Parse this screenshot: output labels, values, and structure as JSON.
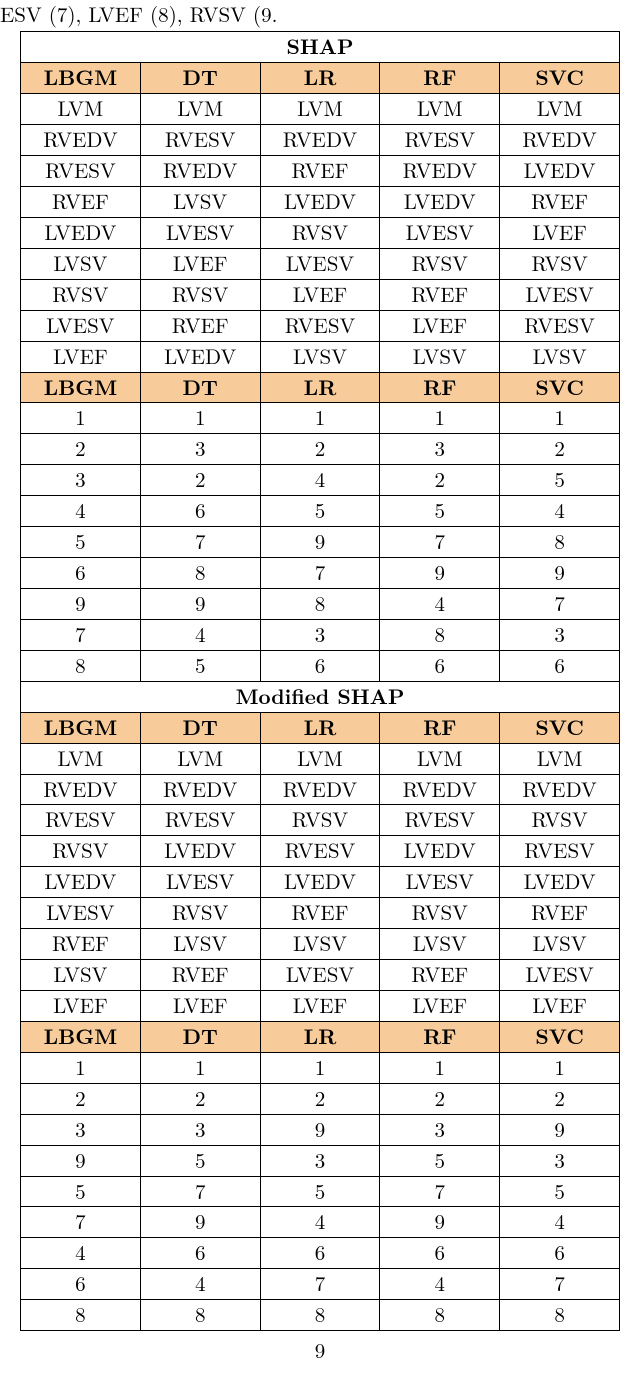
{
  "colors": {
    "header_bg": "#f8cc9a",
    "border": "#000000",
    "bg": "#ffffff",
    "text": "#000000"
  },
  "pretext": "ESV (7), LVEF (8), RVSV (9.",
  "page_number": "9",
  "table": {
    "columns": [
      "LBGM",
      "DT",
      "LR",
      "RF",
      "SVC"
    ],
    "sections": [
      {
        "title": "SHAP",
        "blocks": [
          {
            "header": true,
            "rows": [
              [
                "LVM",
                "LVM",
                "LVM",
                "LVM",
                "LVM"
              ],
              [
                "RVEDV",
                "RVESV",
                "RVEDV",
                "RVESV",
                "RVEDV"
              ],
              [
                "RVESV",
                "RVEDV",
                "RVEF",
                "RVEDV",
                "LVEDV"
              ],
              [
                "RVEF",
                "LVSV",
                "LVEDV",
                "LVEDV",
                "RVEF"
              ],
              [
                "LVEDV",
                "LVESV",
                "RVSV",
                "LVESV",
                "LVEF"
              ],
              [
                "LVSV",
                "LVEF",
                "LVESV",
                "RVSV",
                "RVSV"
              ],
              [
                "RVSV",
                "RVSV",
                "LVEF",
                "RVEF",
                "LVESV"
              ],
              [
                "LVESV",
                "RVEF",
                "RVESV",
                "LVEF",
                "RVESV"
              ],
              [
                "LVEF",
                "LVEDV",
                "LVSV",
                "LVSV",
                "LVSV"
              ]
            ]
          },
          {
            "header": true,
            "rows": [
              [
                "1",
                "1",
                "1",
                "1",
                "1"
              ],
              [
                "2",
                "3",
                "2",
                "3",
                "2"
              ],
              [
                "3",
                "2",
                "4",
                "2",
                "5"
              ],
              [
                "4",
                "6",
                "5",
                "5",
                "4"
              ],
              [
                "5",
                "7",
                "9",
                "7",
                "8"
              ],
              [
                "6",
                "8",
                "7",
                "9",
                "9"
              ],
              [
                "9",
                "9",
                "8",
                "4",
                "7"
              ],
              [
                "7",
                "4",
                "3",
                "8",
                "3"
              ],
              [
                "8",
                "5",
                "6",
                "6",
                "6"
              ]
            ]
          }
        ]
      },
      {
        "title": "Modified SHAP",
        "blocks": [
          {
            "header": true,
            "rows": [
              [
                "LVM",
                "LVM",
                "LVM",
                "LVM",
                "LVM"
              ],
              [
                "RVEDV",
                "RVEDV",
                "RVEDV",
                "RVEDV",
                "RVEDV"
              ],
              [
                "RVESV",
                "RVESV",
                "RVSV",
                "RVESV",
                "RVSV"
              ],
              [
                "RVSV",
                "LVEDV",
                "RVESV",
                "LVEDV",
                "RVESV"
              ],
              [
                "LVEDV",
                "LVESV",
                "LVEDV",
                "LVESV",
                "LVEDV"
              ],
              [
                "LVESV",
                "RVSV",
                "RVEF",
                "RVSV",
                "RVEF"
              ],
              [
                "RVEF",
                "LVSV",
                "LVSV",
                "LVSV",
                "LVSV"
              ],
              [
                "LVSV",
                "RVEF",
                "LVESV",
                "RVEF",
                "LVESV"
              ],
              [
                "LVEF",
                "LVEF",
                "LVEF",
                "LVEF",
                "LVEF"
              ]
            ]
          },
          {
            "header": true,
            "rows": [
              [
                "1",
                "1",
                "1",
                "1",
                "1"
              ],
              [
                "2",
                "2",
                "2",
                "2",
                "2"
              ],
              [
                "3",
                "3",
                "9",
                "3",
                "9"
              ],
              [
                "9",
                "5",
                "3",
                "5",
                "3"
              ],
              [
                "5",
                "7",
                "5",
                "7",
                "5"
              ],
              [
                "7",
                "9",
                "4",
                "9",
                "4"
              ],
              [
                "4",
                "6",
                "6",
                "6",
                "6"
              ],
              [
                "6",
                "4",
                "7",
                "4",
                "7"
              ],
              [
                "8",
                "8",
                "8",
                "8",
                "8"
              ]
            ]
          }
        ]
      }
    ]
  }
}
